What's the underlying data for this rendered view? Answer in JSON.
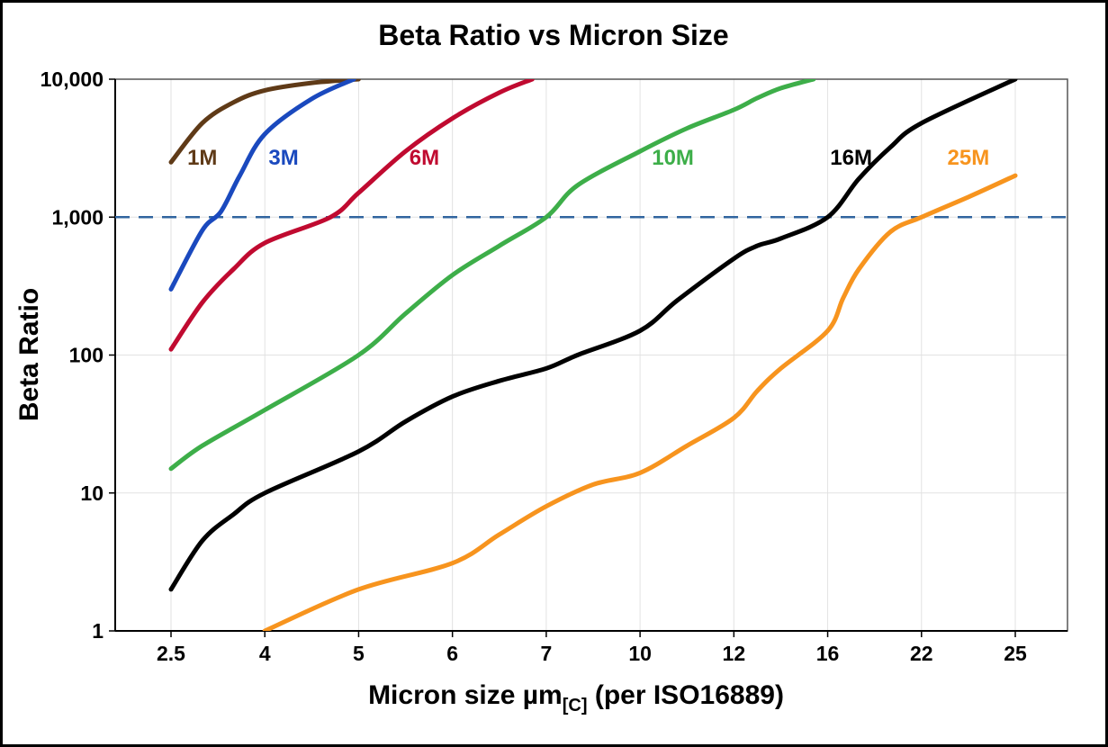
{
  "chart_data": {
    "type": "line",
    "title": "Beta Ratio  vs Micron Size",
    "ylabel": "Beta Ratio",
    "xlabel_main": "Micron size µm",
    "xlabel_sub": "[C]",
    "xlabel_rest": " (per ISO16889)",
    "y_scale": "log",
    "ylim": [
      1,
      10000
    ],
    "x_ticks": [
      2.5,
      4,
      5,
      6,
      7,
      10,
      12,
      16,
      22,
      25
    ],
    "x_tick_labels": [
      "2.5",
      "4",
      "5",
      "6",
      "7",
      "10",
      "12",
      "16",
      "22",
      "25"
    ],
    "y_ticks": [
      1,
      10,
      100,
      1000,
      10000
    ],
    "y_tick_labels": [
      "1",
      "10",
      "100",
      "1,000",
      "10,000"
    ],
    "grid_on": true,
    "grid_color": "#e2e2e2",
    "threshold_line": {
      "y": 1000,
      "color": "#31659f",
      "style": "dashed"
    },
    "series": [
      {
        "name": "1M",
        "color": "#5f3a17",
        "label_x": 3.0,
        "label_y": 2400,
        "points": [
          [
            2.5,
            2500
          ],
          [
            3,
            4800
          ],
          [
            3.5,
            6800
          ],
          [
            4,
            8300
          ],
          [
            4.5,
            9400
          ],
          [
            5,
            10000
          ]
        ]
      },
      {
        "name": "3M",
        "color": "#1a49be",
        "label_x": 4.2,
        "label_y": 2400,
        "points": [
          [
            2.5,
            300
          ],
          [
            3,
            800
          ],
          [
            3.3,
            1100
          ],
          [
            3.6,
            2000
          ],
          [
            4,
            4000
          ],
          [
            4.5,
            7200
          ],
          [
            4.95,
            10000
          ]
        ]
      },
      {
        "name": "6M",
        "color": "#c00a30",
        "label_x": 5.7,
        "label_y": 2400,
        "points": [
          [
            2.5,
            110
          ],
          [
            3,
            240
          ],
          [
            3.5,
            420
          ],
          [
            4,
            650
          ],
          [
            4.7,
            1000
          ],
          [
            5,
            1500
          ],
          [
            5.5,
            3000
          ],
          [
            6,
            5200
          ],
          [
            6.5,
            8000
          ],
          [
            6.85,
            10000
          ]
        ]
      },
      {
        "name": "10M",
        "color": "#3dae49",
        "label_x": 10.7,
        "label_y": 2400,
        "points": [
          [
            2.5,
            15
          ],
          [
            3,
            22
          ],
          [
            4,
            40
          ],
          [
            5,
            100
          ],
          [
            5.5,
            200
          ],
          [
            6,
            380
          ],
          [
            6.5,
            620
          ],
          [
            7,
            1000
          ],
          [
            8,
            1700
          ],
          [
            10,
            3000
          ],
          [
            11,
            4400
          ],
          [
            12,
            6000
          ],
          [
            13,
            7300
          ],
          [
            14,
            8600
          ],
          [
            15.4,
            10000
          ]
        ]
      },
      {
        "name": "16M",
        "color": "#000000",
        "label_x": 17.5,
        "label_y": 2400,
        "points": [
          [
            2.5,
            2
          ],
          [
            3,
            4.5
          ],
          [
            3.5,
            7
          ],
          [
            4,
            10
          ],
          [
            5,
            20
          ],
          [
            5.5,
            33
          ],
          [
            6,
            50
          ],
          [
            6.5,
            65
          ],
          [
            7,
            80
          ],
          [
            8,
            100
          ],
          [
            10,
            150
          ],
          [
            10.8,
            250
          ],
          [
            12,
            500
          ],
          [
            13,
            620
          ],
          [
            14,
            700
          ],
          [
            16,
            1000
          ],
          [
            18,
            1900
          ],
          [
            20,
            3200
          ],
          [
            22,
            4800
          ],
          [
            25,
            10000
          ]
        ]
      },
      {
        "name": "25M",
        "color": "#f7941e",
        "label_x": 23.5,
        "label_y": 2400,
        "points": [
          [
            4,
            1
          ],
          [
            5,
            2
          ],
          [
            6,
            3.1
          ],
          [
            6.5,
            5
          ],
          [
            7,
            8
          ],
          [
            8.5,
            11.5
          ],
          [
            10,
            14
          ],
          [
            11,
            22
          ],
          [
            12,
            35
          ],
          [
            13,
            55
          ],
          [
            14,
            80
          ],
          [
            16,
            150
          ],
          [
            17,
            260
          ],
          [
            18,
            420
          ],
          [
            20,
            780
          ],
          [
            22,
            1000
          ],
          [
            23.5,
            1400
          ],
          [
            25,
            2000
          ]
        ]
      }
    ]
  }
}
